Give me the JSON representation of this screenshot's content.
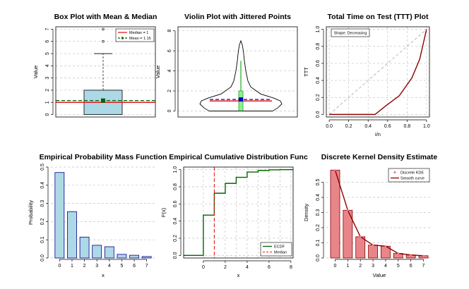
{
  "chart_data": [
    {
      "type": "box",
      "title": "Box Plot with Mean & Median",
      "ylabel": "Value",
      "xlabel": "",
      "ylim": [
        0,
        7
      ],
      "yticks": [
        0,
        1,
        2,
        3,
        4,
        5,
        6,
        7
      ],
      "box": {
        "q1": 0,
        "median": 1,
        "q3": 2,
        "whisker_low": 0,
        "whisker_high": 5,
        "mean": 1.15,
        "outliers": [
          6,
          7
        ]
      },
      "legend": [
        {
          "label": "Median = 1",
          "color": "#e31a1c"
        },
        {
          "label": "Mean = 1.15",
          "color": "#006400"
        }
      ],
      "legend_position": "top-right"
    },
    {
      "type": "violin",
      "title": "Violin Plot with Jittered Points",
      "ylabel": "Value",
      "xlabel": "",
      "ylim": [
        0,
        8
      ],
      "yticks": [
        0,
        2,
        4,
        6,
        8
      ],
      "box": {
        "q1": 0,
        "median": 1,
        "q3": 2,
        "mean": 1.15,
        "whisker_high": 5,
        "max": 7
      }
    },
    {
      "type": "line",
      "title": "Total Time on Test (TTT) Plot",
      "xlabel": "i/n",
      "ylabel": "TTT",
      "xlim": [
        0,
        1
      ],
      "ylim": [
        0,
        1
      ],
      "xticks": [
        "0.0",
        "0.2",
        "0.4",
        "0.6",
        "0.8",
        "1.0"
      ],
      "yticks": [
        "0.0",
        "0.2",
        "0.4",
        "0.6",
        "0.8",
        "1.0"
      ],
      "x": [
        0,
        0.47,
        0.58,
        0.72,
        0.85,
        0.93,
        1.0
      ],
      "y": [
        0,
        0,
        0.1,
        0.22,
        0.43,
        0.65,
        1.0
      ],
      "reference_line": [
        [
          0,
          0
        ],
        [
          1,
          1
        ]
      ],
      "annotation": "Shape: Decreasing"
    },
    {
      "type": "bar",
      "title": "Empirical Probability Mass Function",
      "xlabel": "x",
      "ylabel": "Probability",
      "ylim": [
        0,
        0.5
      ],
      "yticks": [
        "0.0",
        "0.1",
        "0.2",
        "0.3",
        "0.4",
        "0.5"
      ],
      "categories": [
        "0",
        "1",
        "2",
        "3",
        "4",
        "5",
        "6",
        "7"
      ],
      "values": [
        0.47,
        0.255,
        0.115,
        0.07,
        0.062,
        0.02,
        0.015,
        0.008
      ]
    },
    {
      "type": "step",
      "title": "Empirical Cumulative Distribution Func",
      "xlabel": "x",
      "ylabel": "F(x)",
      "xlim": [
        -1.8,
        8.2
      ],
      "ylim": [
        0,
        1
      ],
      "xticks": [
        "0",
        "2",
        "4",
        "6",
        "8"
      ],
      "yticks": [
        "0.0",
        "0.2",
        "0.4",
        "0.6",
        "0.8",
        "1.0"
      ],
      "x": [
        0,
        1,
        2,
        3,
        4,
        5,
        6,
        7
      ],
      "values": [
        0.47,
        0.725,
        0.84,
        0.91,
        0.972,
        0.99,
        0.998,
        1.0
      ],
      "median": 1,
      "legend": [
        {
          "label": "ECDF",
          "color": "#006400"
        },
        {
          "label": "Median",
          "color": "#e31a1c"
        }
      ],
      "legend_position": "bottom-right"
    },
    {
      "type": "bar",
      "title": "Discrete Kernel Density Estimate",
      "xlabel": "Value",
      "ylabel": "Density",
      "ylim": [
        0,
        0.6
      ],
      "yticks": [
        "0.0",
        "0.1",
        "0.2",
        "0.3",
        "0.4",
        "0.5"
      ],
      "categories": [
        "0",
        "1",
        "2",
        "3",
        "4",
        "5",
        "6",
        "7"
      ],
      "values": [
        0.58,
        0.315,
        0.14,
        0.085,
        0.078,
        0.03,
        0.02,
        0.015
      ],
      "smooth_curve": [
        0.58,
        0.315,
        0.14,
        0.085,
        0.078,
        0.03,
        0.02,
        0.015
      ],
      "legend": [
        {
          "label": "Discrete KDE",
          "color": "#e8858a"
        },
        {
          "label": "Smooth curve",
          "color": "#8b0000"
        }
      ],
      "legend_position": "top-right"
    }
  ]
}
